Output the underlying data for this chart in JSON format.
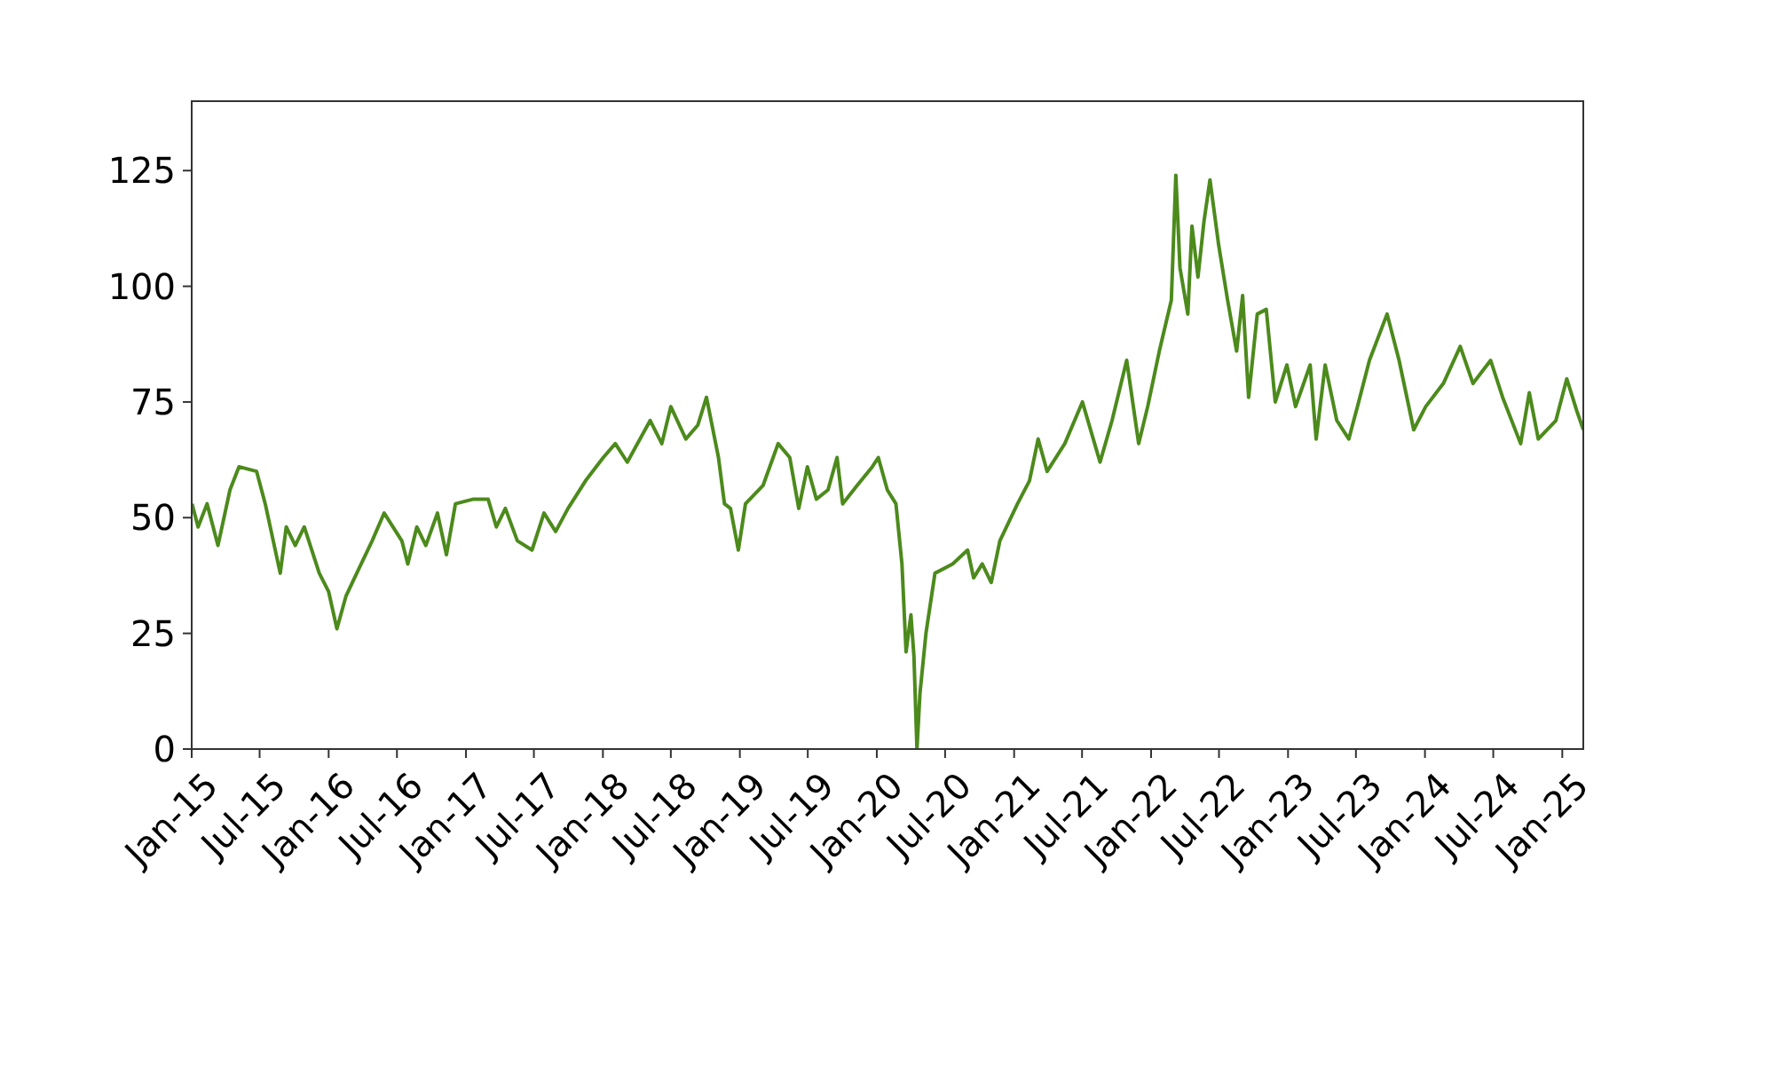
{
  "chart_data": {
    "type": "line",
    "xlim": [
      "2015-01-01",
      "2025-02-26"
    ],
    "ylim": [
      0,
      140
    ],
    "yticks": [
      0,
      25,
      50,
      75,
      100,
      125
    ],
    "xticks": [
      {
        "value": "2015-01-01",
        "label": "Jan-15"
      },
      {
        "value": "2015-07-01",
        "label": "Jul-15"
      },
      {
        "value": "2016-01-01",
        "label": "Jan-16"
      },
      {
        "value": "2016-07-01",
        "label": "Jul-16"
      },
      {
        "value": "2017-01-01",
        "label": "Jan-17"
      },
      {
        "value": "2017-07-01",
        "label": "Jul-17"
      },
      {
        "value": "2018-01-01",
        "label": "Jan-18"
      },
      {
        "value": "2018-07-01",
        "label": "Jul-18"
      },
      {
        "value": "2019-01-01",
        "label": "Jan-19"
      },
      {
        "value": "2019-07-01",
        "label": "Jul-19"
      },
      {
        "value": "2020-01-01",
        "label": "Jan-20"
      },
      {
        "value": "2020-07-01",
        "label": "Jul-20"
      },
      {
        "value": "2021-01-01",
        "label": "Jan-21"
      },
      {
        "value": "2021-07-01",
        "label": "Jul-21"
      },
      {
        "value": "2022-01-01",
        "label": "Jan-22"
      },
      {
        "value": "2022-07-01",
        "label": "Jul-22"
      },
      {
        "value": "2023-01-01",
        "label": "Jan-23"
      },
      {
        "value": "2023-07-01",
        "label": "Jul-23"
      },
      {
        "value": "2024-01-01",
        "label": "Jan-24"
      },
      {
        "value": "2024-07-01",
        "label": "Jul-24"
      },
      {
        "value": "2025-01-01",
        "label": "Jan-25"
      }
    ],
    "marker": "none",
    "line_style": "solid",
    "series": [
      {
        "color": "#4c8a1c",
        "x": [
          "2015-01-02",
          "2015-01-18",
          "2015-02-11",
          "2015-03-12",
          "2015-04-13",
          "2015-05-07",
          "2015-06-23",
          "2015-07-16",
          "2015-08-25",
          "2015-09-10",
          "2015-10-04",
          "2015-10-28",
          "2015-12-07",
          "2016-01-01",
          "2016-01-23",
          "2016-02-16",
          "2016-03-10",
          "2016-04-26",
          "2016-05-28",
          "2016-07-14",
          "2016-07-30",
          "2016-08-23",
          "2016-09-16",
          "2016-10-17",
          "2016-11-10",
          "2016-12-04",
          "2017-01-21",
          "2017-03-01",
          "2017-03-23",
          "2017-04-16",
          "2017-05-18",
          "2017-06-26",
          "2017-07-28",
          "2017-08-28",
          "2017-09-30",
          "2017-11-16",
          "2018-01-02",
          "2018-02-03",
          "2018-03-07",
          "2018-05-07",
          "2018-06-07",
          "2018-07-01",
          "2018-08-10",
          "2018-09-11",
          "2018-10-04",
          "2018-11-05",
          "2018-11-21",
          "2018-12-07",
          "2018-12-28",
          "2019-01-16",
          "2019-03-04",
          "2019-04-13",
          "2019-05-14",
          "2019-06-07",
          "2019-06-30",
          "2019-07-24",
          "2019-08-24",
          "2019-09-17",
          "2019-10-02",
          "2019-11-10",
          "2019-12-20",
          "2020-01-05",
          "2020-01-29",
          "2020-02-21",
          "2020-03-08",
          "2020-03-19",
          "2020-04-01",
          "2020-04-09",
          "2020-04-17",
          "2020-04-25",
          "2020-05-11",
          "2020-06-04",
          "2020-07-21",
          "2020-08-30",
          "2020-09-15",
          "2020-10-08",
          "2020-11-01",
          "2020-11-24",
          "2021-01-10",
          "2021-02-11",
          "2021-03-06",
          "2021-03-30",
          "2021-05-16",
          "2021-07-02",
          "2021-08-18",
          "2021-09-19",
          "2021-10-28",
          "2021-11-29",
          "2021-12-23",
          "2022-01-23",
          "2022-02-24",
          "2022-03-08",
          "2022-03-19",
          "2022-04-09",
          "2022-04-20",
          "2022-05-06",
          "2022-05-22",
          "2022-06-07",
          "2022-06-30",
          "2022-07-24",
          "2022-08-17",
          "2022-09-02",
          "2022-09-18",
          "2022-10-11",
          "2022-11-04",
          "2022-11-28",
          "2022-12-29",
          "2023-01-21",
          "2023-03-01",
          "2023-03-17",
          "2023-04-10",
          "2023-05-11",
          "2023-06-12",
          "2023-07-05",
          "2023-08-06",
          "2023-09-22",
          "2023-10-24",
          "2023-12-02",
          "2024-01-03",
          "2024-02-19",
          "2024-04-04",
          "2024-05-08",
          "2024-06-24",
          "2024-07-26",
          "2024-09-12",
          "2024-10-05",
          "2024-10-29",
          "2024-12-15",
          "2025-01-13",
          "2025-02-09",
          "2025-02-26"
        ],
        "values": [
          53,
          48,
          53,
          44,
          56,
          61,
          60,
          53,
          38,
          48,
          44,
          48,
          38,
          34,
          26,
          33,
          37,
          45,
          51,
          45,
          40,
          48,
          44,
          51,
          42,
          53,
          54,
          54,
          48,
          52,
          45,
          43,
          51,
          47,
          52,
          58,
          63,
          66,
          62,
          71,
          66,
          74,
          67,
          70,
          76,
          63,
          53,
          52,
          43,
          53,
          57,
          66,
          63,
          52,
          61,
          54,
          56,
          63,
          53,
          57,
          61,
          63,
          56,
          53,
          40,
          21,
          29,
          20,
          0,
          12,
          25,
          38,
          40,
          43,
          37,
          40,
          36,
          45,
          53,
          58,
          67,
          60,
          66,
          75,
          62,
          71,
          84,
          66,
          74,
          86,
          97,
          124,
          104,
          94,
          113,
          102,
          114,
          123,
          109,
          97,
          86,
          98,
          76,
          94,
          95,
          75,
          83,
          74,
          83,
          67,
          83,
          71,
          67,
          74,
          84,
          94,
          84,
          69,
          74,
          79,
          87,
          79,
          84,
          76,
          66,
          77,
          67,
          71,
          80,
          73,
          69
        ]
      }
    ]
  }
}
